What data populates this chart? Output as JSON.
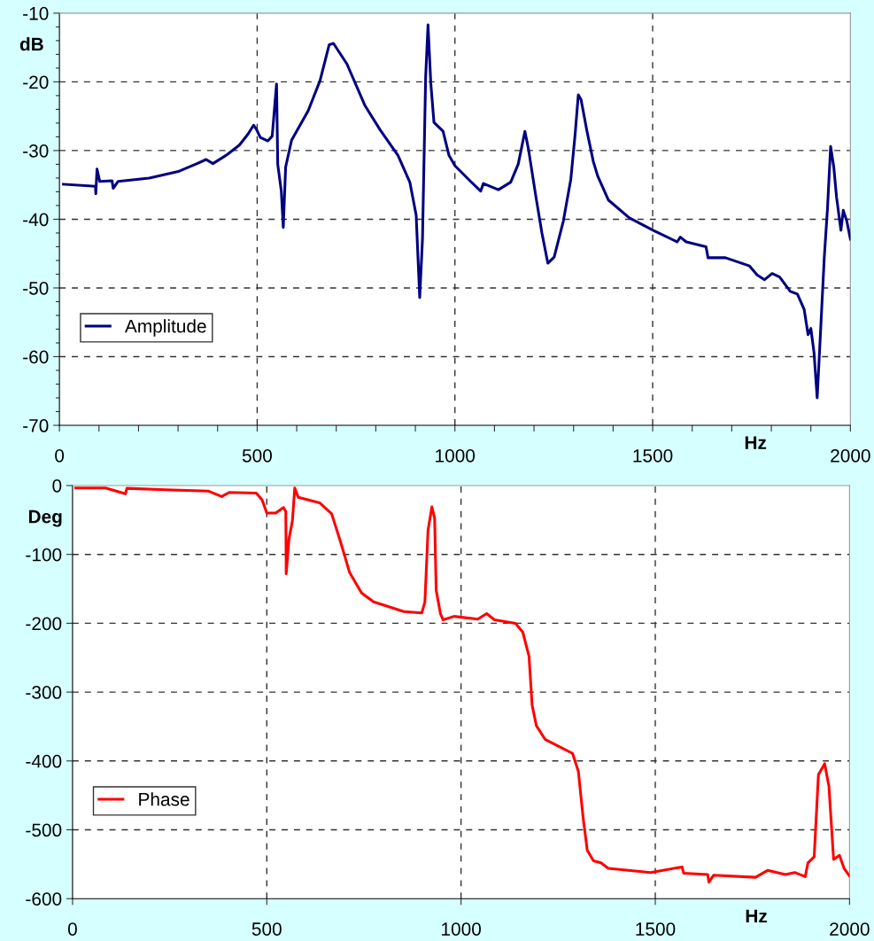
{
  "chart_data": [
    {
      "type": "line",
      "xlabel": "Hz",
      "ylabel": "dB",
      "xlim": [
        0,
        2000
      ],
      "ylim": [
        -70,
        -10
      ],
      "xticks": [
        0,
        {
          "value": 100,
          "label": null
        },
        {
          "value": 200,
          "label": null
        },
        {
          "value": 300,
          "label": null
        },
        {
          "value": 400,
          "label": null
        },
        500,
        {
          "value": 600,
          "label": null
        },
        {
          "value": 700,
          "label": null
        },
        {
          "value": 800,
          "label": null
        },
        {
          "value": 900,
          "label": null
        },
        1000,
        {
          "value": 1100,
          "label": null
        },
        {
          "value": 1200,
          "label": null
        },
        {
          "value": 1300,
          "label": null
        },
        {
          "value": 1400,
          "label": null
        },
        1500,
        {
          "value": 1600,
          "label": null
        },
        {
          "value": 1700,
          "label": null
        },
        {
          "value": 1800,
          "label": null
        },
        {
          "value": 1900,
          "label": null
        },
        2000
      ],
      "yticks": [
        -70,
        {
          "value": -68,
          "label": null
        },
        {
          "value": -66,
          "label": null
        },
        {
          "value": -64,
          "label": null
        },
        {
          "value": -62,
          "label": null
        },
        -60,
        {
          "value": -58,
          "label": null
        },
        {
          "value": -56,
          "label": null
        },
        {
          "value": -54,
          "label": null
        },
        {
          "value": -52,
          "label": null
        },
        -50,
        {
          "value": -48,
          "label": null
        },
        {
          "value": -46,
          "label": null
        },
        {
          "value": -44,
          "label": null
        },
        {
          "value": -42,
          "label": null
        },
        -40,
        {
          "value": -38,
          "label": null
        },
        {
          "value": -36,
          "label": null
        },
        {
          "value": -34,
          "label": null
        },
        {
          "value": -32,
          "label": null
        },
        -30,
        {
          "value": -28,
          "label": null
        },
        {
          "value": -26,
          "label": null
        },
        {
          "value": -24,
          "label": null
        },
        {
          "value": -22,
          "label": null
        },
        -20,
        {
          "value": -18,
          "label": null
        },
        {
          "value": -16,
          "label": null
        },
        {
          "value": -14,
          "label": null
        },
        {
          "value": -12,
          "label": null
        },
        -10
      ],
      "grid": true,
      "legend": "lower left",
      "line_style": "solid",
      "series": [
        {
          "name": "Amplitude",
          "color": "#000080",
          "x": [
            10,
            91,
            92,
            95,
            102,
            133,
            136,
            148,
            227,
            303,
            348,
            371,
            388,
            424,
            455,
            477,
            491,
            498,
            508,
            527,
            538,
            549,
            552,
            561,
            566,
            572,
            587,
            629,
            659,
            682,
            693,
            727,
            773,
            811,
            856,
            886,
            902,
            911,
            918,
            926,
            932,
            939,
            947,
            970,
            985,
            1000,
            1038,
            1065,
            1072,
            1110,
            1141,
            1160,
            1171,
            1177,
            1186,
            1205,
            1220,
            1235,
            1251,
            1274,
            1293,
            1304,
            1312,
            1319,
            1334,
            1350,
            1361,
            1388,
            1441,
            1501,
            1562,
            1570,
            1585,
            1635,
            1640,
            1684,
            1745,
            1764,
            1783,
            1802,
            1821,
            1848,
            1866,
            1883,
            1893,
            1900,
            1908,
            1916,
            1923,
            1934,
            1942,
            1950,
            1958,
            1965,
            1976,
            1982,
            1991,
            2000
          ],
          "values": [
            -34.9,
            -35.2,
            -36.3,
            -32.7,
            -34.5,
            -34.4,
            -35.5,
            -34.5,
            -34.0,
            -33.0,
            -31.9,
            -31.3,
            -31.9,
            -30.6,
            -29.2,
            -27.6,
            -26.3,
            -26.9,
            -28.1,
            -28.6,
            -27.9,
            -20.3,
            -32.0,
            -35.9,
            -41.2,
            -32.4,
            -28.5,
            -24.2,
            -19.8,
            -14.6,
            -14.4,
            -17.4,
            -23.5,
            -27.0,
            -30.7,
            -34.6,
            -39.4,
            -51.4,
            -42.9,
            -19.3,
            -11.7,
            -20.2,
            -25.9,
            -27.2,
            -30.7,
            -32.2,
            -34.4,
            -35.9,
            -34.8,
            -35.7,
            -34.6,
            -32.0,
            -28.9,
            -27.2,
            -29.8,
            -36.8,
            -42.0,
            -46.4,
            -45.5,
            -40.3,
            -34.2,
            -27.6,
            -21.9,
            -22.6,
            -27.2,
            -31.6,
            -33.7,
            -37.2,
            -39.8,
            -41.6,
            -43.3,
            -42.6,
            -43.3,
            -44.0,
            -45.6,
            -45.6,
            -46.8,
            -48.1,
            -48.8,
            -47.9,
            -48.4,
            -50.5,
            -50.9,
            -53.1,
            -56.8,
            -55.9,
            -59.4,
            -66.0,
            -58.1,
            -45.5,
            -38.5,
            -29.4,
            -32.4,
            -36.8,
            -41.6,
            -38.7,
            -40.3,
            -42.9
          ]
        }
      ]
    },
    {
      "type": "line",
      "xlabel": "Hz",
      "ylabel": "Deg",
      "xlim": [
        0,
        2000
      ],
      "ylim": [
        -600,
        0
      ],
      "xticks": [
        0,
        500,
        1000,
        1500,
        2000
      ],
      "yticks": [
        -600,
        -500,
        -400,
        -300,
        -200,
        -100,
        0
      ],
      "grid": true,
      "legend": "lower left",
      "line_style": "solid",
      "series": [
        {
          "name": "Phase",
          "color": "#ff0000",
          "x": [
            8,
            85,
            136,
            140,
            240,
            349,
            384,
            403,
            473,
            488,
            500,
            523,
            543,
            549,
            550,
            557,
            566,
            572,
            581,
            636,
            667,
            690,
            713,
            744,
            775,
            814,
            853,
            899,
            907,
            915,
            925,
            932,
            936,
            947,
            954,
            982,
            1043,
            1066,
            1086,
            1140,
            1159,
            1175,
            1183,
            1194,
            1217,
            1256,
            1287,
            1302,
            1314,
            1325,
            1341,
            1360,
            1379,
            1488,
            1569,
            1573,
            1635,
            1638,
            1650,
            1758,
            1789,
            1835,
            1859,
            1886,
            1893,
            1909,
            1920,
            1936,
            1947,
            1959,
            1974,
            1986,
            2000
          ],
          "values": [
            -3.5,
            -3.5,
            -12,
            -4,
            -6,
            -8,
            -16,
            -10,
            -11,
            -21,
            -40,
            -40,
            -32,
            -38,
            -128,
            -78,
            -51,
            -3.5,
            -17,
            -25,
            -41,
            -82,
            -126,
            -156,
            -169,
            -176,
            -183,
            -185,
            -169,
            -65,
            -31,
            -47,
            -152,
            -186,
            -195,
            -190,
            -194,
            -186,
            -195,
            -200,
            -213,
            -248,
            -319,
            -349,
            -369,
            -380,
            -389,
            -415,
            -481,
            -530,
            -545,
            -548,
            -556,
            -562,
            -554,
            -563,
            -565,
            -576,
            -566,
            -569,
            -559,
            -565,
            -562,
            -568,
            -548,
            -539,
            -420,
            -404,
            -437,
            -543,
            -537,
            -556,
            -567
          ]
        }
      ]
    }
  ]
}
